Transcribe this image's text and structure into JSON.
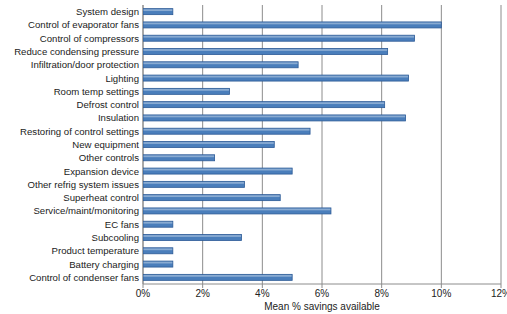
{
  "chart_data": {
    "type": "bar",
    "orientation": "horizontal",
    "x_label": "Mean % savings available",
    "categories": [
      "System design",
      "Control of evaporator fans",
      "Control of compressors",
      "Reduce condensing pressure",
      "Infiltration/door protection",
      "Lighting",
      "Room temp settings",
      "Defrost control",
      "Insulation",
      "Restoring of control settings",
      "New equipment",
      "Other controls",
      "Expansion device",
      "Other refrig system issues",
      "Superheat control",
      "Service/maint/monitoring",
      "EC fans",
      "Subcooling",
      "Product temperature",
      "Battery charging",
      "Control of condenser fans"
    ],
    "values": [
      1.0,
      10.0,
      9.1,
      8.2,
      5.2,
      8.9,
      2.9,
      8.1,
      8.8,
      5.6,
      4.4,
      2.4,
      5.0,
      3.4,
      4.6,
      6.3,
      1.0,
      3.3,
      1.0,
      1.0,
      5.0
    ],
    "color": "#4a7ebb",
    "xlim": [
      0,
      12
    ],
    "xticks": [
      {
        "value": 0,
        "label": "0%"
      },
      {
        "value": 2,
        "label": "2%"
      },
      {
        "value": 4,
        "label": "4%"
      },
      {
        "value": 6,
        "label": "6%"
      },
      {
        "value": 8,
        "label": "8%"
      },
      {
        "value": 10,
        "label": "10%"
      },
      {
        "value": 12,
        "label": "12%"
      }
    ],
    "grid": true
  }
}
